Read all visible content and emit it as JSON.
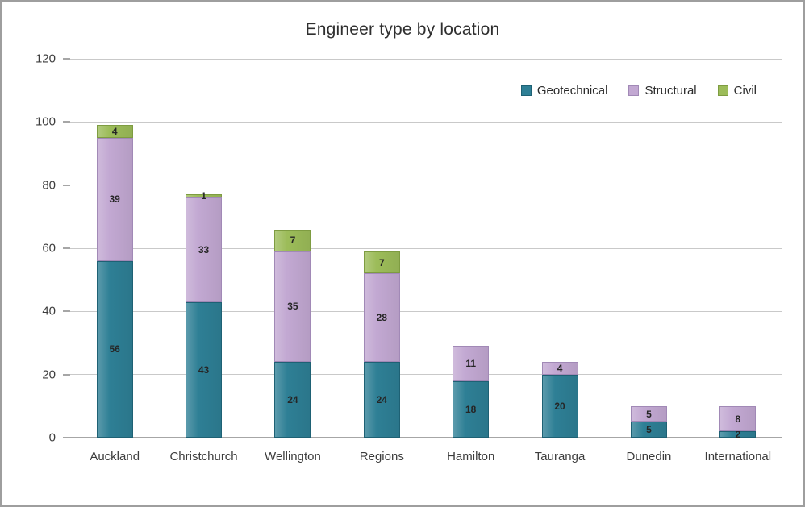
{
  "chart_data": {
    "type": "bar",
    "stacked": true,
    "title": "Engineer type by location",
    "categories": [
      "Auckland",
      "Christchurch",
      "Wellington",
      "Regions",
      "Hamilton",
      "Tauranga",
      "Dunedin",
      "International"
    ],
    "series": [
      {
        "name": "Geotechnical",
        "color": "#2E7F95",
        "border_color": "#1E6174",
        "values": [
          56,
          43,
          24,
          24,
          18,
          20,
          5,
          2
        ]
      },
      {
        "name": "Structural",
        "color": "#C2A8D2",
        "border_color": "#A189B6",
        "values": [
          39,
          33,
          35,
          28,
          11,
          4,
          5,
          8
        ]
      },
      {
        "name": "Civil",
        "color": "#9CBC59",
        "border_color": "#7E9C41",
        "values": [
          4,
          1,
          7,
          7,
          0,
          0,
          0,
          0
        ]
      }
    ],
    "totals": [
      99,
      77,
      66,
      59,
      29,
      24,
      10,
      10
    ],
    "ylim": [
      0,
      120
    ],
    "yticks": [
      0,
      20,
      40,
      60,
      80,
      100,
      120
    ],
    "grid": "horizontal",
    "legend_position": "top-right",
    "data_labels": "inside-center",
    "style_colors": {
      "gridline": "#c9c9c9",
      "axis_line": "#a6a6a6",
      "text": "#3d3d3d",
      "label_text": "#262626"
    }
  }
}
